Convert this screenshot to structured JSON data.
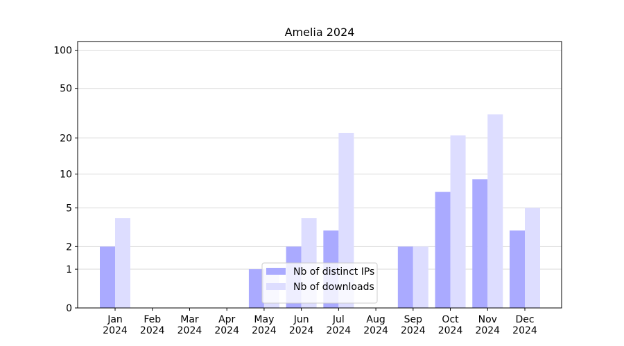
{
  "chart_data": {
    "type": "bar",
    "title": "Amelia 2024",
    "categories": [
      "Jan\n2024",
      "Feb\n2024",
      "Mar\n2024",
      "Apr\n2024",
      "May\n2024",
      "Jun\n2024",
      "Jul\n2024",
      "Aug\n2024",
      "Sep\n2024",
      "Oct\n2024",
      "Nov\n2024",
      "Dec\n2024"
    ],
    "series": [
      {
        "name": "Nb of distinct IPs",
        "color": "#aaaaff",
        "values": [
          2,
          0,
          0,
          0,
          1,
          2,
          3,
          0,
          2,
          7,
          9,
          3
        ]
      },
      {
        "name": "Nb of downloads",
        "color": "#ddddff",
        "values": [
          4,
          0,
          0,
          0,
          1,
          4,
          22,
          0,
          2,
          21,
          31,
          5
        ]
      }
    ],
    "yscale": "log1p",
    "ylim": [
      0,
      117
    ],
    "yticks": [
      0,
      1,
      2,
      5,
      10,
      20,
      50,
      100
    ],
    "grid": true,
    "legend": "lower center"
  }
}
